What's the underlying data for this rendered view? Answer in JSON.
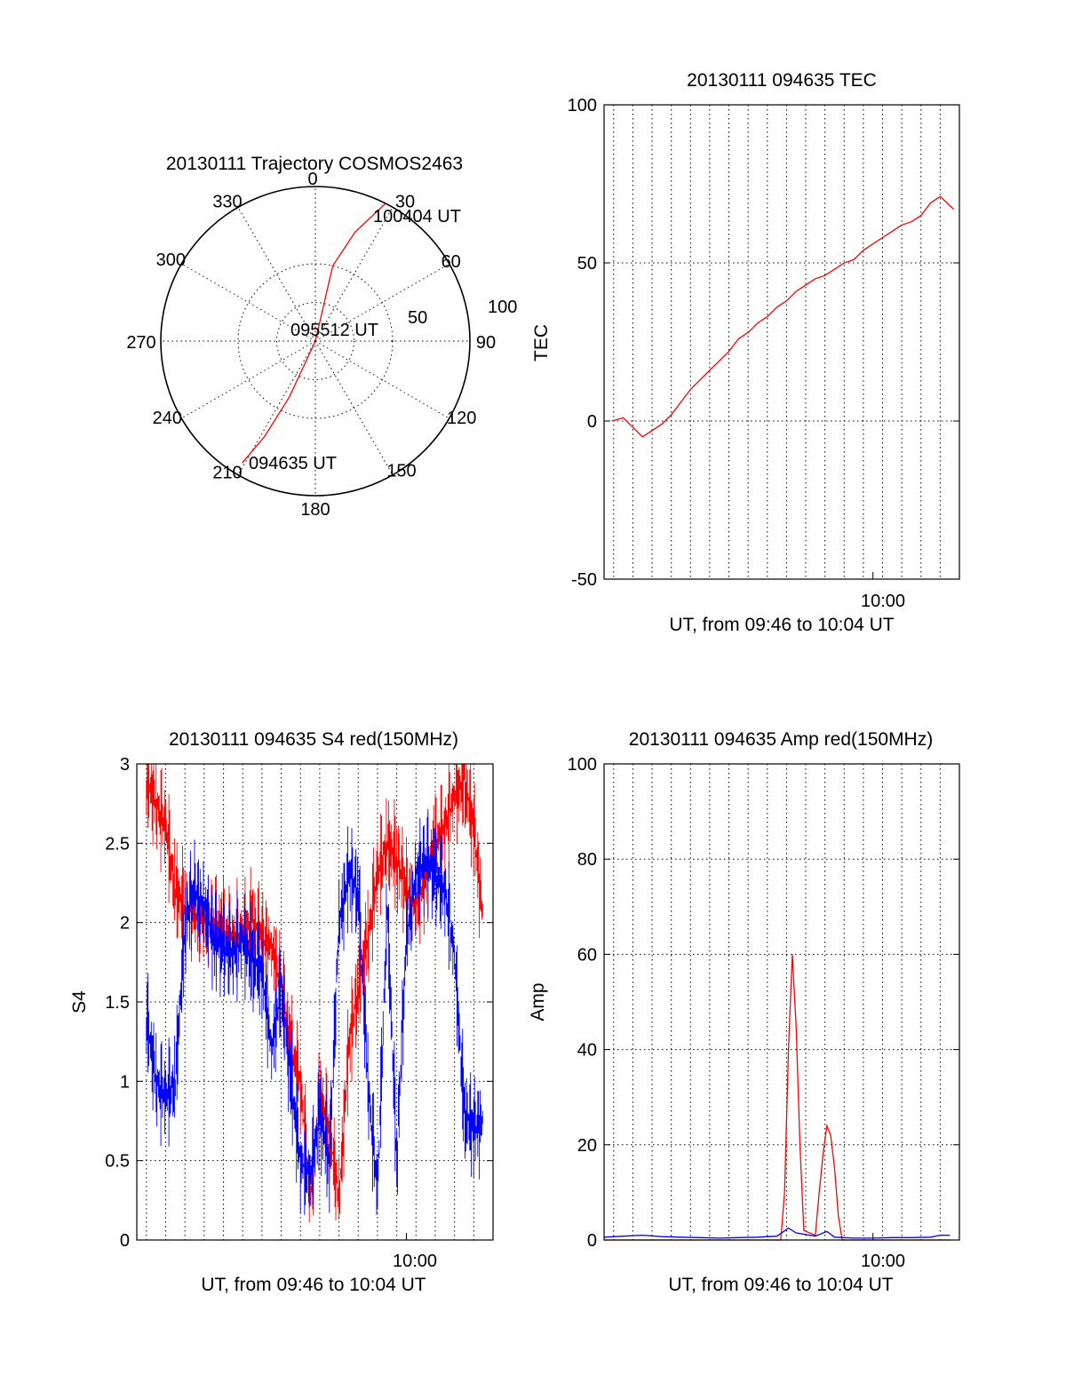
{
  "colors": {
    "red": "#ff0000",
    "blue": "#0000ff",
    "axis": "#000000"
  },
  "chart_data": [
    {
      "type": "polar",
      "title": "20130111 Trajectory COSMOS2463",
      "azimuth_labels": [
        "0",
        "30",
        "60",
        "90",
        "120",
        "150",
        "180",
        "210",
        "240",
        "270",
        "300",
        "330"
      ],
      "radial_labels": [
        "50",
        "100"
      ],
      "series": [
        {
          "color": "red",
          "points": [
            [
              27,
              100
            ],
            [
              20,
              75
            ],
            [
              13,
              50
            ],
            [
              0,
              0
            ],
            [
              205,
              40
            ],
            [
              208,
              70
            ],
            [
              211,
              92
            ]
          ]
        }
      ],
      "annotations": [
        "100404 UT",
        "095512 UT",
        "094635 UT"
      ]
    },
    {
      "type": "line",
      "title": "20130111 094635 TEC",
      "xlabel": "UT, from 09:46 to 10:04 UT",
      "ylabel": "TEC",
      "ylim": [
        -50,
        100
      ],
      "yticks": [
        "100",
        "50",
        "0",
        "-50"
      ],
      "xtick_label": "10:00",
      "series": [
        {
          "color": "red",
          "x_min": [
            0.4,
            1.0,
            1.5,
            2.0,
            2.5,
            3.0,
            3.5,
            4.0,
            4.5,
            5.0,
            5.5,
            6.0,
            6.5,
            7.0,
            7.5,
            8.0,
            8.5,
            9.0,
            9.5,
            10.0,
            10.5,
            11.0,
            11.5,
            12.0,
            12.5,
            13.0,
            13.5,
            14.0,
            14.5,
            15.0,
            15.5,
            16.0,
            16.5,
            17.0,
            17.5,
            18.2
          ],
          "y": [
            0,
            1,
            -2,
            -5,
            -3,
            -1,
            2,
            6,
            10,
            13,
            16,
            19,
            22,
            26,
            28,
            31,
            33,
            36,
            38,
            41,
            43,
            45,
            46,
            48,
            50,
            51,
            54,
            56,
            58,
            60,
            62,
            63,
            65,
            69,
            71,
            67
          ]
        }
      ]
    },
    {
      "type": "line",
      "title": "20130111 094635 S4 red(150MHz)",
      "xlabel": "UT, from 09:46 to 10:04 UT",
      "ylabel": "S4",
      "ylim": [
        0,
        3
      ],
      "yticks": [
        "3",
        "2.5",
        "2",
        "1.5",
        "1",
        "0.5",
        "0"
      ],
      "xtick_label": "10:00",
      "series": [
        {
          "color": "red",
          "x_min": [
            0.5,
            1.0,
            1.5,
            2.0,
            2.5,
            3.0,
            3.5,
            4.0,
            4.5,
            5.0,
            5.5,
            6.0,
            6.5,
            7.0,
            7.5,
            8.0,
            8.5,
            9.0,
            9.5,
            10.0,
            10.5,
            11.0,
            11.5,
            12.0,
            12.5,
            13.0,
            13.5,
            14.0,
            14.5,
            15.0,
            15.5,
            16.0,
            16.5,
            17.0,
            17.5,
            18.0
          ],
          "y": [
            2.9,
            2.75,
            2.6,
            2.2,
            2.1,
            2.05,
            2.0,
            2.0,
            1.95,
            1.9,
            1.95,
            2.0,
            1.9,
            1.85,
            1.6,
            1.2,
            1.0,
            0.25,
            0.9,
            0.7,
            0.25,
            1.2,
            1.6,
            1.9,
            2.3,
            2.5,
            2.4,
            2.2,
            2.1,
            2.3,
            2.5,
            2.6,
            2.8,
            2.9,
            2.6,
            2.0
          ]
        },
        {
          "color": "blue",
          "x_min": [
            0.5,
            1.0,
            1.5,
            2.0,
            2.5,
            3.0,
            3.5,
            4.0,
            4.5,
            5.0,
            5.5,
            6.0,
            6.5,
            7.0,
            7.5,
            8.0,
            8.5,
            9.0,
            9.5,
            10.0,
            10.5,
            11.0,
            11.5,
            12.0,
            12.5,
            13.0,
            13.5,
            14.0,
            14.5,
            15.0,
            15.5,
            16.0,
            16.5,
            17.0,
            17.5,
            18.0
          ],
          "y": [
            1.4,
            1.0,
            0.9,
            1.0,
            2.0,
            2.2,
            2.1,
            1.9,
            1.85,
            1.8,
            1.9,
            1.75,
            1.7,
            1.2,
            1.6,
            1.0,
            0.5,
            0.4,
            0.8,
            0.5,
            2.0,
            2.3,
            2.2,
            1.0,
            0.3,
            2.1,
            0.5,
            1.9,
            2.3,
            2.4,
            2.3,
            2.2,
            1.8,
            0.8,
            0.7,
            0.75
          ]
        }
      ]
    },
    {
      "type": "line",
      "title": "20130111 094635 Amp red(150MHz)",
      "xlabel": "UT, from 09:46 to 10:04 UT",
      "ylabel": "Amp",
      "ylim": [
        0,
        100
      ],
      "yticks": [
        "100",
        "80",
        "60",
        "40",
        "20",
        "0"
      ],
      "xtick_label": "10:00",
      "series": [
        {
          "color": "red",
          "x_min": [
            0.0,
            9.2,
            9.4,
            9.6,
            9.8,
            10.0,
            10.2,
            10.4,
            11.0,
            11.2,
            11.4,
            11.6,
            11.8,
            12.0,
            12.2,
            12.4,
            18.0
          ],
          "y": [
            0,
            0,
            10,
            40,
            60,
            45,
            20,
            2,
            1,
            10,
            18,
            24,
            22,
            15,
            5,
            0,
            0
          ]
        },
        {
          "color": "blue",
          "x_min": [
            0.0,
            1.0,
            2.0,
            3.0,
            4.0,
            5.0,
            6.0,
            7.0,
            8.0,
            9.0,
            9.6,
            10.0,
            11.0,
            11.6,
            12.0,
            13.0,
            14.0,
            15.0,
            16.0,
            17.0,
            17.5,
            18.0
          ],
          "y": [
            0.6,
            0.8,
            1.0,
            0.7,
            0.6,
            0.5,
            0.4,
            0.5,
            0.6,
            0.8,
            2.5,
            1.5,
            0.8,
            1.8,
            0.6,
            0.4,
            0.4,
            0.5,
            0.5,
            0.6,
            1.0,
            1.0
          ]
        }
      ]
    }
  ]
}
